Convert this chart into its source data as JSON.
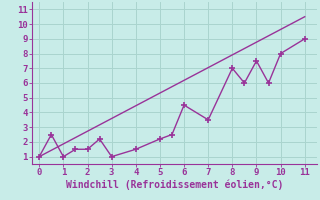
{
  "xlabel": "Windchill (Refroidissement éolien,°C)",
  "ylabel": "",
  "background_color": "#c8ece8",
  "grid_color": "#aad4ce",
  "line_color": "#993399",
  "scatter_x": [
    0,
    0.5,
    1,
    1.5,
    2,
    2.5,
    3,
    4,
    5,
    5.5,
    6,
    7,
    8,
    8.5,
    9,
    9.5,
    10,
    11
  ],
  "scatter_y": [
    1,
    2.5,
    1,
    1.5,
    1.5,
    2.2,
    1,
    1.5,
    2.2,
    2.5,
    4.5,
    3.5,
    7,
    6,
    7.5,
    6,
    8,
    9
  ],
  "trend_x": [
    0,
    11
  ],
  "trend_y": [
    1,
    10.5
  ],
  "xlim": [
    -0.3,
    11.5
  ],
  "ylim": [
    0.5,
    11.5
  ],
  "xticks": [
    0,
    1,
    2,
    3,
    4,
    5,
    6,
    7,
    8,
    9,
    10,
    11
  ],
  "yticks": [
    1,
    2,
    3,
    4,
    5,
    6,
    7,
    8,
    9,
    10,
    11
  ],
  "marker": "+",
  "marker_size": 5,
  "marker_edge_width": 1.2,
  "line_width": 1.0,
  "tick_fontsize": 6.5,
  "xlabel_fontsize": 7.0
}
